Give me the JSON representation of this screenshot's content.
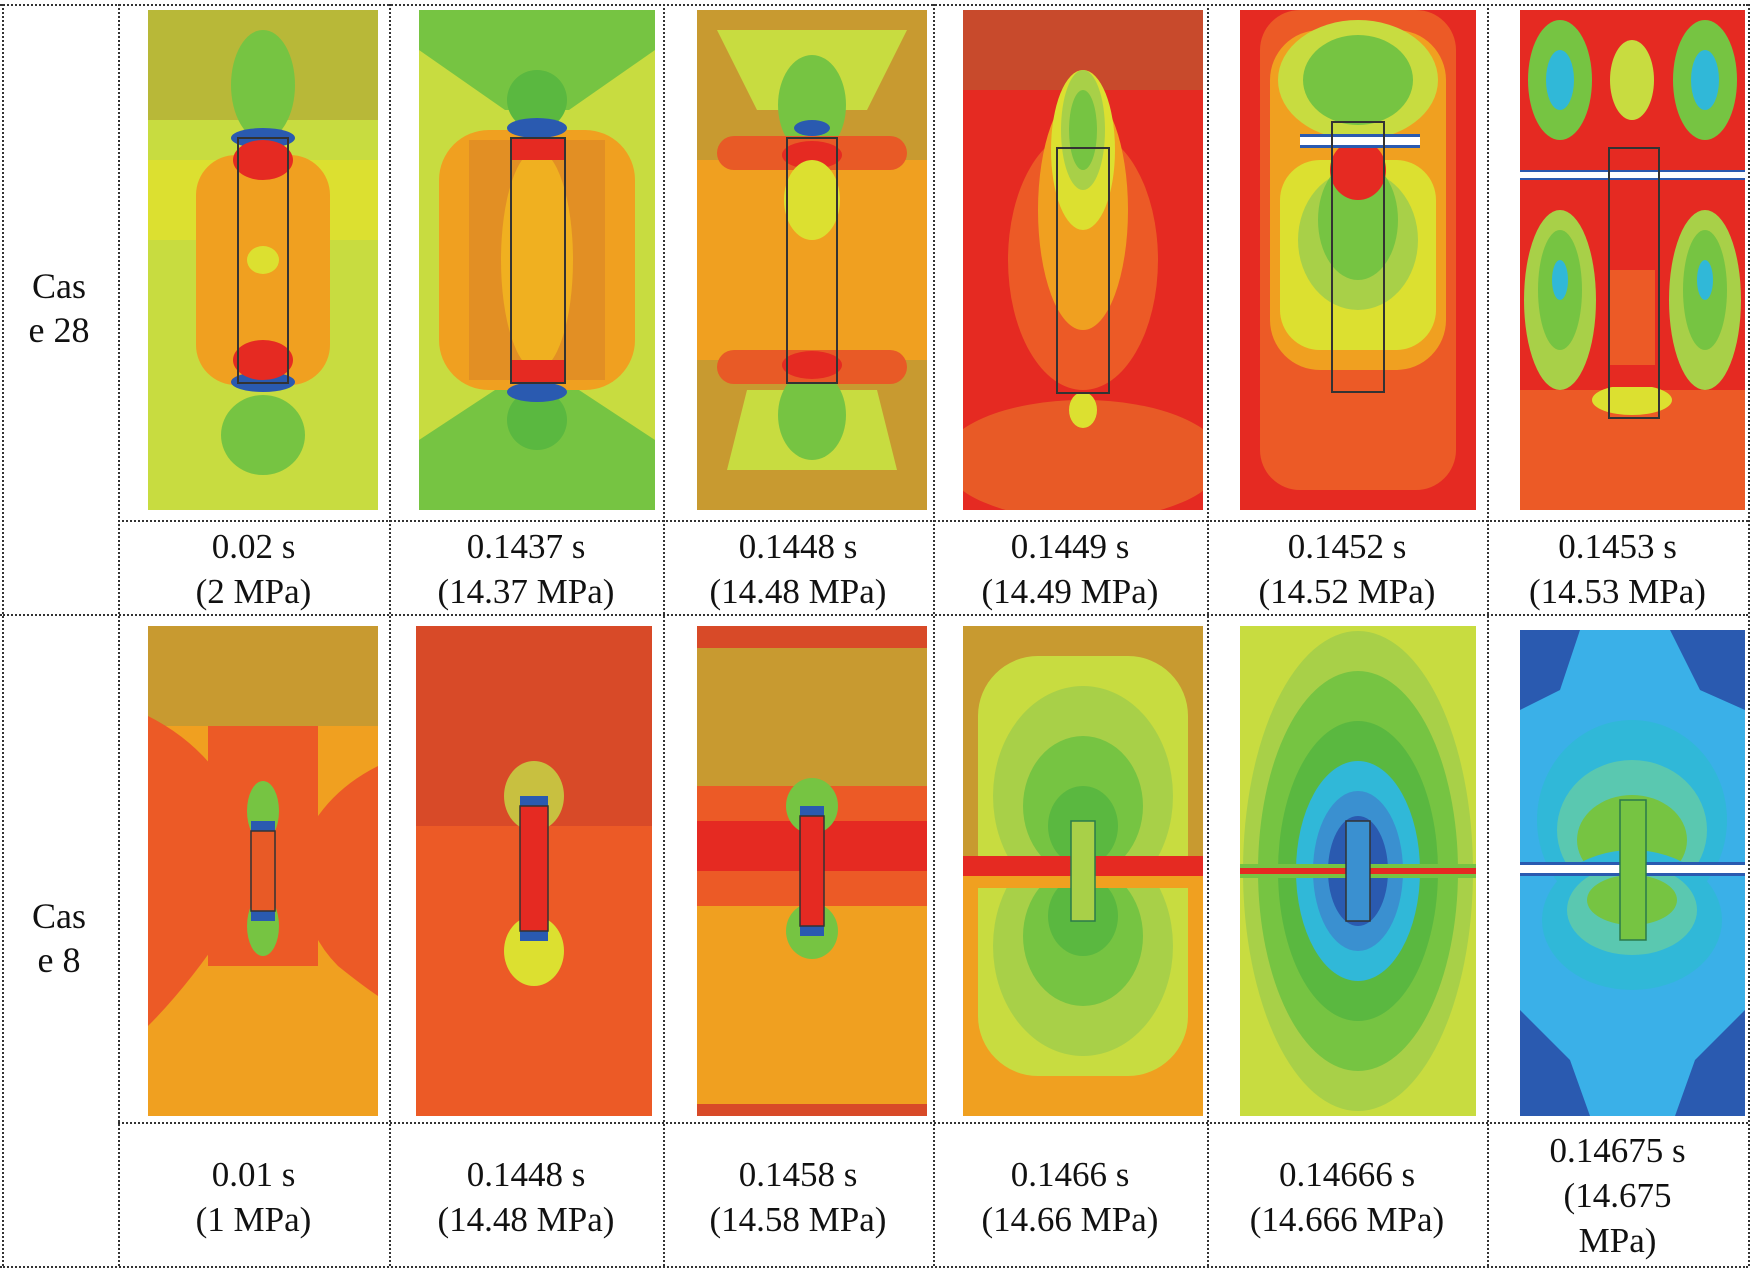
{
  "figure": {
    "rows": [
      {
        "label_lines": [
          "Cas",
          "e 28"
        ],
        "panels": [
          {
            "caption_lines": [
              "0.02 s",
              "(2 MPa)"
            ]
          },
          {
            "caption_lines": [
              "0.1437 s",
              "(14.37 MPa)"
            ]
          },
          {
            "caption_lines": [
              "0.1448 s",
              "(14.48 MPa)"
            ]
          },
          {
            "caption_lines": [
              "0.1449 s",
              "(14.49 MPa)"
            ]
          },
          {
            "caption_lines": [
              "0.1452 s",
              "(14.52 MPa)"
            ]
          },
          {
            "caption_lines": [
              "0.1453 s",
              "(14.53 MPa)"
            ]
          }
        ]
      },
      {
        "label_lines": [
          "Cas",
          "e 8"
        ],
        "panels": [
          {
            "caption_lines": [
              "0.01 s",
              "(1 MPa)"
            ]
          },
          {
            "caption_lines": [
              "0.1448 s",
              "(14.48 MPa)"
            ]
          },
          {
            "caption_lines": [
              "0.1458 s",
              "(14.58 MPa)"
            ]
          },
          {
            "caption_lines": [
              "0.1466 s",
              "(14.66 MPa)"
            ]
          },
          {
            "caption_lines": [
              "0.14666 s",
              "(14.666 MPa)"
            ]
          },
          {
            "caption_lines": [
              "0.14675 s",
              "(14.675",
              "MPa)"
            ]
          }
        ]
      }
    ]
  },
  "colors": {
    "dark_red": "#c84a2c",
    "red": "#e52a22",
    "orange_red": "#ec5a26",
    "orange": "#f0a020",
    "amber": "#c89a30",
    "yellow": "#e8e020",
    "yellow_green": "#c8dc40",
    "green": "#76c442",
    "light_green": "#a8d048",
    "cyan": "#30b8d8",
    "light_blue": "#3ab0e8",
    "blue": "#2a5ab0",
    "white": "#ffffff"
  }
}
